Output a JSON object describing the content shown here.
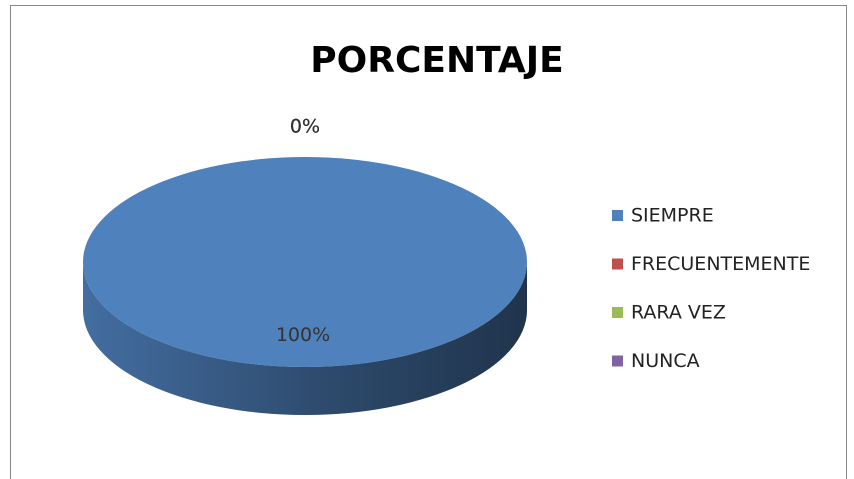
{
  "chart_data": {
    "type": "pie",
    "title": "PORCENTAJE",
    "categories": [
      "SIEMPRE",
      "FRECUENTEMENTE",
      "RARA VEZ",
      "NUNCA"
    ],
    "values": [
      100,
      0,
      0,
      0
    ],
    "value_labels": [
      "100%",
      "0%",
      "0%",
      "0%"
    ],
    "colors": [
      "#4f81bd",
      "#c0504d",
      "#9bbb59",
      "#8064a2"
    ],
    "legend": "right"
  }
}
